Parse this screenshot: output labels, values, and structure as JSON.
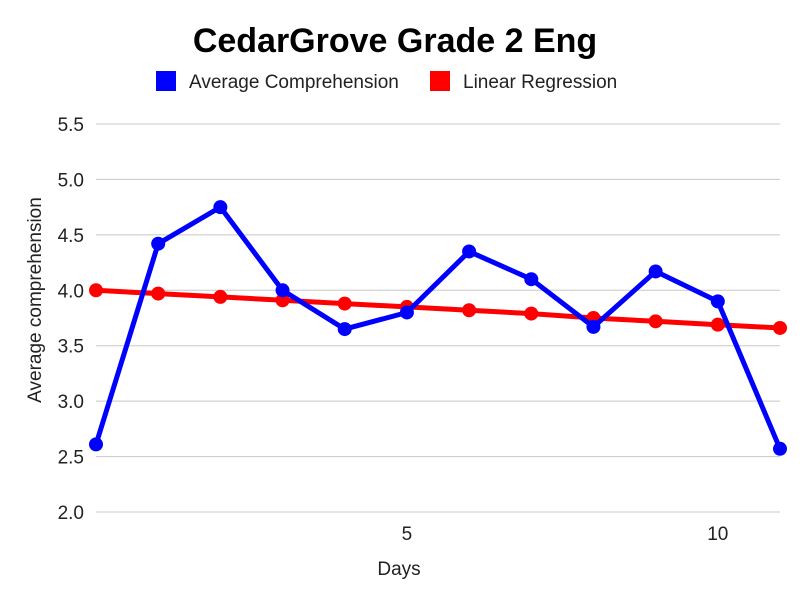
{
  "chart_data": {
    "type": "line",
    "title": "CedarGrove Grade 2 Eng",
    "xlabel": "Days",
    "ylabel": "Average comprehension",
    "xlim": [
      0,
      11
    ],
    "ylim": [
      2.0,
      5.5
    ],
    "y_ticks": [
      2.0,
      2.5,
      3.0,
      3.5,
      4.0,
      4.5,
      5.0,
      5.5
    ],
    "x_ticks": [
      5,
      10
    ],
    "grid": true,
    "legend_position": "top",
    "x": [
      0,
      1,
      2,
      3,
      4,
      5,
      6,
      7,
      8,
      9,
      10,
      11
    ],
    "series": [
      {
        "name": "Average Comprehension",
        "color": "#0000ff",
        "values": [
          2.61,
          4.42,
          4.75,
          4.0,
          3.65,
          3.8,
          4.35,
          4.1,
          3.67,
          4.17,
          3.9,
          2.57
        ]
      },
      {
        "name": "Linear Regression",
        "color": "#ff0000",
        "values": [
          4.0,
          3.97,
          3.94,
          3.91,
          3.88,
          3.85,
          3.82,
          3.79,
          3.75,
          3.72,
          3.69,
          3.66
        ]
      }
    ]
  }
}
